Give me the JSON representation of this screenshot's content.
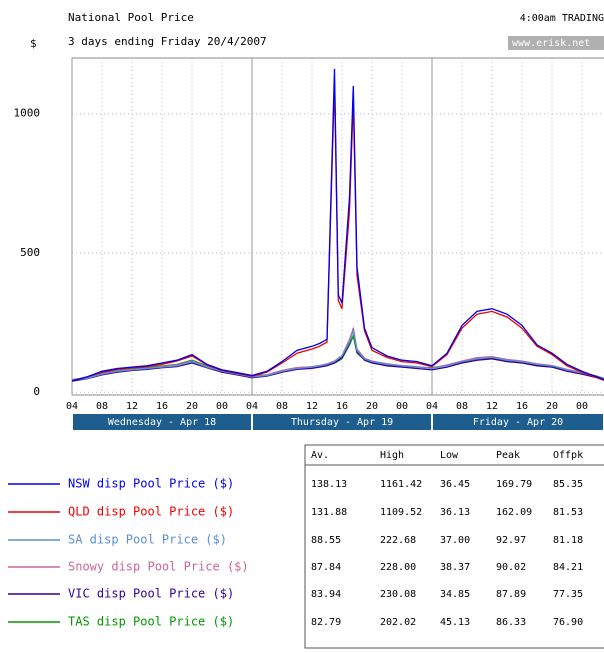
{
  "chart_data": {
    "type": "line",
    "title": "National Pool Price",
    "subtitle": "3 days ending Friday 20/4/2007",
    "status": "4:00am TRADING",
    "source": "www.erisk.net",
    "y_label": "$",
    "x": [
      4,
      6,
      8,
      10,
      12,
      14,
      16,
      18,
      20,
      22,
      24,
      26,
      28,
      30,
      32,
      34,
      36,
      37,
      38,
      39,
      39.5,
      40,
      41,
      41.5,
      42,
      43,
      44,
      46,
      48,
      50,
      52,
      54,
      56,
      58,
      60,
      62,
      64,
      66,
      68,
      70,
      72,
      74,
      75
    ],
    "xlim": [
      4,
      75
    ],
    "xticks": [
      {
        "value": 4,
        "label": "04"
      },
      {
        "value": 8,
        "label": "08"
      },
      {
        "value": 12,
        "label": "12"
      },
      {
        "value": 16,
        "label": "16"
      },
      {
        "value": 20,
        "label": "20"
      },
      {
        "value": 24,
        "label": "00"
      },
      {
        "value": 28,
        "label": "04"
      },
      {
        "value": 32,
        "label": "08"
      },
      {
        "value": 36,
        "label": "12"
      },
      {
        "value": 40,
        "label": "16"
      },
      {
        "value": 44,
        "label": "20"
      },
      {
        "value": 48,
        "label": "00"
      },
      {
        "value": 52,
        "label": "04"
      },
      {
        "value": 56,
        "label": "08"
      },
      {
        "value": 60,
        "label": "12"
      },
      {
        "value": 64,
        "label": "16"
      },
      {
        "value": 68,
        "label": "20"
      },
      {
        "value": 72,
        "label": "00"
      }
    ],
    "days": [
      {
        "label": "Wednesday - Apr 18",
        "start": 4,
        "end": 28
      },
      {
        "label": "Thursday - Apr 19",
        "start": 28,
        "end": 52
      },
      {
        "label": "Friday - Apr 20",
        "start": 52,
        "end": 76
      }
    ],
    "ylim": [
      -10,
      1200
    ],
    "yticks": [
      0,
      500,
      1000
    ],
    "grid": true,
    "series": [
      {
        "name": "NSW disp Pool Price ($)",
        "color": "#0000ee",
        "values": [
          40,
          55,
          75,
          85,
          90,
          95,
          105,
          115,
          135,
          100,
          80,
          70,
          60,
          75,
          110,
          150,
          165,
          175,
          190,
          1161,
          350,
          320,
          700,
          1100,
          450,
          230,
          160,
          130,
          115,
          110,
          95,
          140,
          240,
          290,
          300,
          280,
          240,
          170,
          140,
          100,
          75,
          55,
          45
        ]
      },
      {
        "name": "QLD disp Pool Price ($)",
        "color": "#ee0000",
        "values": [
          42,
          55,
          72,
          82,
          88,
          92,
          100,
          112,
          130,
          98,
          78,
          68,
          58,
          72,
          105,
          140,
          155,
          165,
          180,
          1110,
          330,
          300,
          650,
          1050,
          420,
          220,
          150,
          125,
          110,
          105,
          92,
          135,
          230,
          280,
          290,
          270,
          230,
          165,
          135,
          95,
          72,
          52,
          43
        ]
      },
      {
        "name": "SA disp Pool Price ($)",
        "color": "#5a8fd8",
        "values": [
          45,
          50,
          65,
          75,
          80,
          85,
          90,
          95,
          110,
          90,
          75,
          65,
          55,
          60,
          75,
          85,
          90,
          95,
          100,
          110,
          120,
          130,
          180,
          222,
          150,
          120,
          110,
          100,
          95,
          90,
          85,
          95,
          110,
          120,
          125,
          115,
          110,
          100,
          95,
          80,
          70,
          55,
          45
        ]
      },
      {
        "name": "Snowy disp Pool Price ($)",
        "color": "#cc6699",
        "values": [
          44,
          50,
          66,
          76,
          82,
          86,
          92,
          98,
          112,
          92,
          76,
          66,
          56,
          62,
          78,
          88,
          92,
          96,
          102,
          112,
          122,
          132,
          190,
          228,
          155,
          122,
          112,
          102,
          96,
          92,
          86,
          98,
          112,
          124,
          128,
          118,
          112,
          102,
          96,
          82,
          72,
          56,
          46
        ]
      },
      {
        "name": "VIC disp Pool Price ($)",
        "color": "#330099",
        "values": [
          40,
          48,
          62,
          72,
          78,
          82,
          88,
          92,
          105,
          88,
          72,
          62,
          52,
          58,
          72,
          82,
          86,
          90,
          95,
          105,
          115,
          125,
          175,
          230,
          145,
          115,
          105,
          95,
          90,
          85,
          80,
          90,
          105,
          115,
          120,
          110,
          105,
          95,
          90,
          75,
          65,
          52,
          42
        ]
      },
      {
        "name": "TAS disp Pool Price ($)",
        "color": "#009900",
        "values": [
          45,
          52,
          68,
          78,
          84,
          88,
          94,
          100,
          115,
          95,
          80,
          70,
          60,
          62,
          78,
          88,
          90,
          94,
          98,
          105,
          112,
          120,
          170,
          202,
          140,
          118,
          108,
          98,
          94,
          90,
          88,
          96,
          108,
          118,
          122,
          112,
          108,
          98,
          92,
          80,
          70,
          58,
          48
        ]
      }
    ],
    "table": {
      "columns": [
        "Av.",
        "High",
        "Low",
        "Peak",
        "Offpk"
      ],
      "rows": [
        [
          "138.13",
          "1161.42",
          "36.45",
          "169.79",
          "85.35"
        ],
        [
          "131.88",
          "1109.52",
          "36.13",
          "162.09",
          "81.53"
        ],
        [
          "88.55",
          "222.68",
          "37.00",
          "92.97",
          "81.18"
        ],
        [
          "87.84",
          "228.00",
          "38.37",
          "90.02",
          "84.21"
        ],
        [
          "83.94",
          "230.08",
          "34.85",
          "87.89",
          "77.35"
        ],
        [
          "82.79",
          "202.02",
          "45.13",
          "86.33",
          "76.90"
        ]
      ]
    }
  }
}
